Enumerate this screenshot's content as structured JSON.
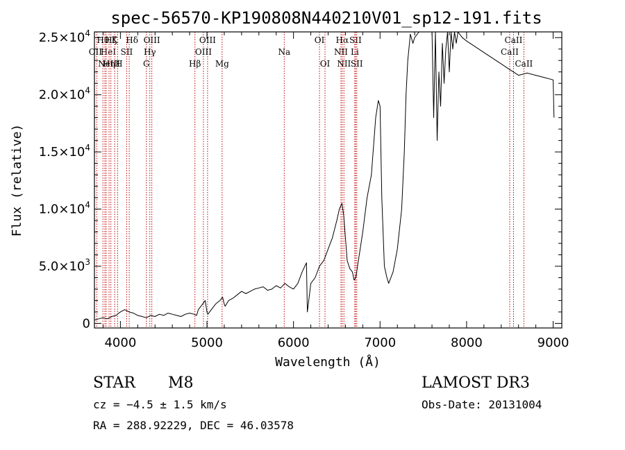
{
  "chart_data": {
    "type": "line",
    "title": "spec-56570-KP190808N440210V01_sp12-191.fits",
    "xlabel": "Wavelength (Å)",
    "ylabel": "Flux (relative)",
    "xlim": [
      3700,
      9100
    ],
    "ylim": [
      -400,
      25500
    ],
    "grid": false,
    "x_ticks": [
      {
        "value": 4000,
        "label": "4000"
      },
      {
        "value": 5000,
        "label": "5000"
      },
      {
        "value": 6000,
        "label": "6000"
      },
      {
        "value": 7000,
        "label": "7000"
      },
      {
        "value": 8000,
        "label": "8000"
      },
      {
        "value": 9000,
        "label": "9000"
      }
    ],
    "y_ticks": [
      {
        "value": 0,
        "mant": "0",
        "exp": ""
      },
      {
        "value": 5000,
        "mant": "5.0×10",
        "exp": "3"
      },
      {
        "value": 10000,
        "mant": "1.0×10",
        "exp": "4"
      },
      {
        "value": 15000,
        "mant": "1.5×10",
        "exp": "4"
      },
      {
        "value": 20000,
        "mant": "2.0×10",
        "exp": "4"
      },
      {
        "value": 25000,
        "mant": "2.5×10",
        "exp": "4"
      }
    ],
    "series": [
      {
        "x": [
          3700,
          3750,
          3800,
          3850,
          3900,
          3950,
          3980,
          4000,
          4050,
          4100,
          4150,
          4200,
          4250,
          4300,
          4350,
          4400,
          4450,
          4500,
          4550,
          4600,
          4650,
          4700,
          4750,
          4800,
          4850,
          4880,
          4900,
          4950,
          4980,
          5000,
          5010,
          5050,
          5100,
          5150,
          5180,
          5200,
          5210,
          5250,
          5300,
          5350,
          5400,
          5450,
          5500,
          5550,
          5600,
          5650,
          5700,
          5750,
          5800,
          5850,
          5900,
          5950,
          6000,
          6050,
          6100,
          6130,
          6150,
          6160,
          6200,
          6250,
          6300,
          6350,
          6400,
          6450,
          6500,
          6530,
          6560,
          6580,
          6600,
          6620,
          6650,
          6680,
          6700,
          6720,
          6750,
          6800,
          6850,
          6900,
          6950,
          6980,
          7000,
          7020,
          7050,
          7080,
          7100,
          7150,
          7200,
          7250,
          7280,
          7300,
          7320,
          7350,
          7380,
          7400,
          7450,
          7500,
          7550,
          7600,
          7620,
          7640,
          7660,
          7680,
          7700,
          7720,
          7740,
          7760,
          7780,
          7800,
          7820,
          7840,
          7860,
          7880,
          7900,
          7950,
          8000,
          8100,
          8200,
          8300,
          8400,
          8500,
          8600,
          8700,
          8800,
          8900,
          9000,
          9010
        ],
        "y": [
          300,
          400,
          500,
          400,
          600,
          700,
          900,
          1000,
          1200,
          1000,
          900,
          700,
          600,
          500,
          700,
          600,
          800,
          700,
          900,
          800,
          700,
          600,
          800,
          900,
          800,
          700,
          1200,
          1700,
          2000,
          1000,
          800,
          1200,
          1700,
          2000,
          2300,
          1700,
          1500,
          2000,
          2200,
          2500,
          2800,
          2600,
          2800,
          3000,
          3100,
          3200,
          2900,
          3000,
          3300,
          3100,
          3500,
          3200,
          3000,
          3500,
          4500,
          5000,
          5300,
          1000,
          3500,
          4000,
          5000,
          5500,
          6500,
          7500,
          9000,
          10000,
          10500,
          9500,
          7500,
          5500,
          4800,
          4500,
          3800,
          4000,
          5500,
          8000,
          11000,
          13000,
          18000,
          19500,
          19000,
          11000,
          5000,
          4000,
          3500,
          4500,
          6500,
          10000,
          15000,
          20000,
          23000,
          25300,
          24500,
          25000,
          25500,
          25500,
          25500,
          25500,
          18000,
          25500,
          16000,
          22000,
          19000,
          24500,
          21000,
          24000,
          25500,
          22000,
          25500,
          24000,
          25500,
          24500,
          25500,
          25000,
          24700,
          24200,
          23700,
          23200,
          22700,
          22200,
          21700,
          21900,
          21700,
          21500,
          21300,
          18000
        ]
      }
    ],
    "lines": [
      {
        "wl": 3727,
        "label": "OII",
        "row": 1,
        "dx": -2
      },
      {
        "wl": 3798,
        "label": "Hθ",
        "row": 0,
        "dx": 0
      },
      {
        "wl": 3820,
        "label": "HeI",
        "row": 1,
        "dx": 5
      },
      {
        "wl": 3835,
        "label": "Hη",
        "row": 2,
        "dx": 4
      },
      {
        "wl": 3869,
        "label": "NeIII",
        "row": 2,
        "dx": 0
      },
      {
        "wl": 3890,
        "label": "Hζ",
        "row": 0,
        "dx": 0
      },
      {
        "wl": 3934,
        "label": "K",
        "row": 0,
        "dx": 0
      },
      {
        "wl": 3968,
        "label": "H",
        "row": 2,
        "dx": 2
      },
      {
        "wl": 4072,
        "label": "SII",
        "row": 1,
        "dx": 0
      },
      {
        "wl": 4102,
        "label": "Hδ",
        "row": 0,
        "dx": 4
      },
      {
        "wl": 4300,
        "label": "G",
        "row": 2,
        "dx": 0
      },
      {
        "wl": 4340,
        "label": "Hγ",
        "row": 1,
        "dx": 0
      },
      {
        "wl": 4363,
        "label": "OIII",
        "row": 0,
        "dx": 0
      },
      {
        "wl": 4861,
        "label": "Hβ",
        "row": 2,
        "dx": 0
      },
      {
        "wl": 4959,
        "label": "OIII",
        "row": 1,
        "dx": 0
      },
      {
        "wl": 5007,
        "label": "OIII",
        "row": 0,
        "dx": 0
      },
      {
        "wl": 5175,
        "label": "Mg",
        "row": 2,
        "dx": 0
      },
      {
        "wl": 5893,
        "label": "Na",
        "row": 1,
        "dx": 0
      },
      {
        "wl": 6300,
        "label": "OI",
        "row": 0,
        "dx": 0
      },
      {
        "wl": 6364,
        "label": "OI",
        "row": 2,
        "dx": 0
      },
      {
        "wl": 6548,
        "label": "NII",
        "row": 1,
        "dx": 0
      },
      {
        "wl": 6563,
        "label": "Hα",
        "row": 0,
        "dx": 0
      },
      {
        "wl": 6583,
        "label": "NII",
        "row": 2,
        "dx": 0
      },
      {
        "wl": 6708,
        "label": "Li",
        "row": 1,
        "dx": 0
      },
      {
        "wl": 6716,
        "label": "SII",
        "row": 0,
        "dx": 0
      },
      {
        "wl": 6731,
        "label": "SII",
        "row": 2,
        "dx": 0
      },
      {
        "wl": 8498,
        "label": "CaII",
        "row": 1,
        "dx": 0
      },
      {
        "wl": 8542,
        "label": "CaII",
        "row": 0,
        "dx": 0
      },
      {
        "wl": 8662,
        "label": "CaII",
        "row": 2,
        "dx": 0
      }
    ]
  },
  "info": {
    "class": "STAR",
    "subclass": "M8",
    "cz": "cz = −4.5 ± 1.5 km/s",
    "coords": "RA = 288.92229, DEC =  46.03578",
    "survey": "LAMOST DR3",
    "obs_date": "Obs-Date: 20131004"
  }
}
